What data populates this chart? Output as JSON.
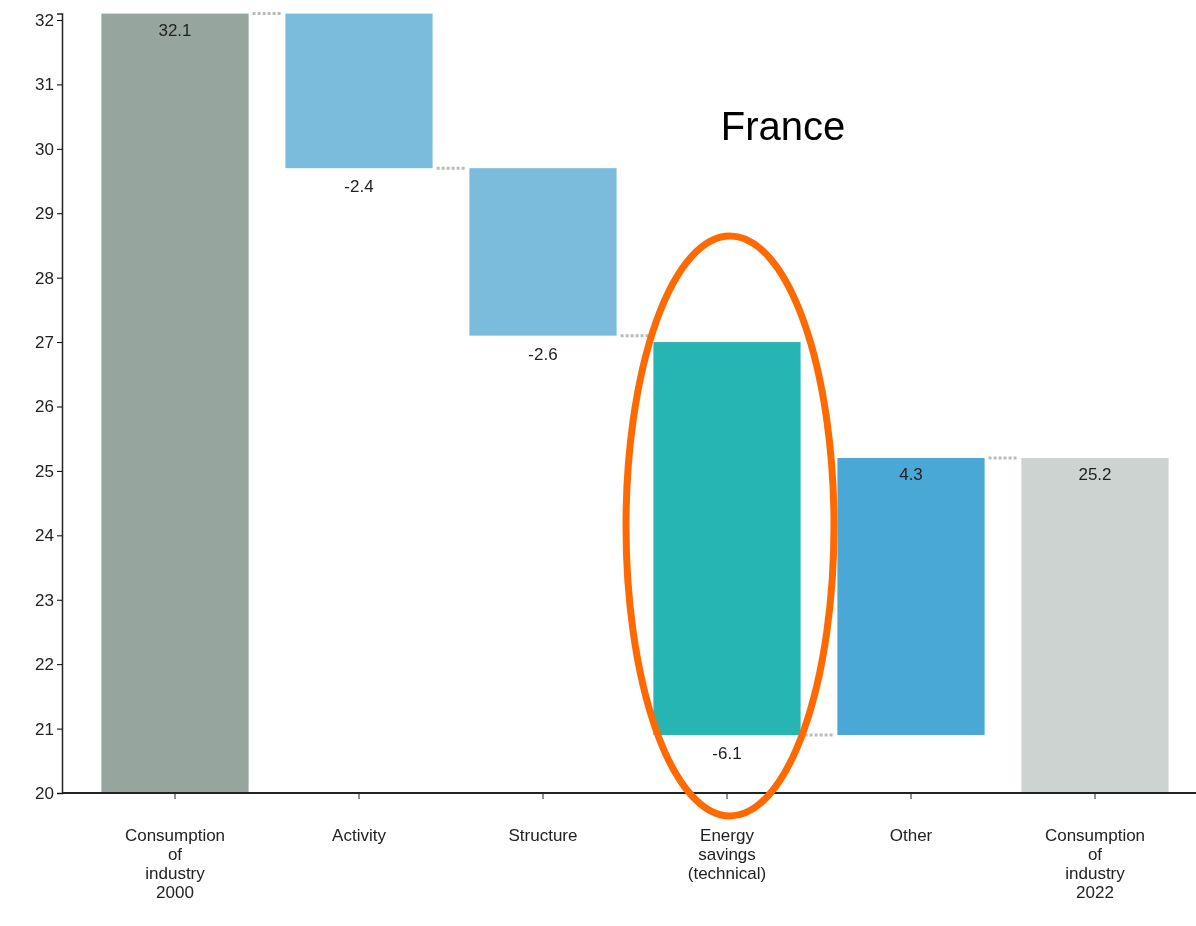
{
  "chart_data": {
    "type": "bar",
    "title": "France",
    "categories": [
      "Consumption of industry 2000",
      "Activity",
      "Structure",
      "Energy savings (technical)",
      "Other",
      "Consumption of industry 2022"
    ],
    "values": [
      32.1,
      -2.4,
      -2.6,
      -6.1,
      4.3,
      25.2
    ],
    "base": [
      null,
      32.1,
      29.7,
      27.0,
      20.9,
      null
    ],
    "colors": [
      "#97a59f",
      "#7bbcdc",
      "#7bbcdc",
      "#26b5b2",
      "#4aa8d6",
      "#cdd3d1"
    ],
    "data_labels": true,
    "ylim": [
      20,
      32.1
    ],
    "yticks": [
      20,
      21,
      22,
      23,
      24,
      25,
      26,
      27,
      28,
      29,
      30,
      31,
      32
    ],
    "grid": false
  }
}
